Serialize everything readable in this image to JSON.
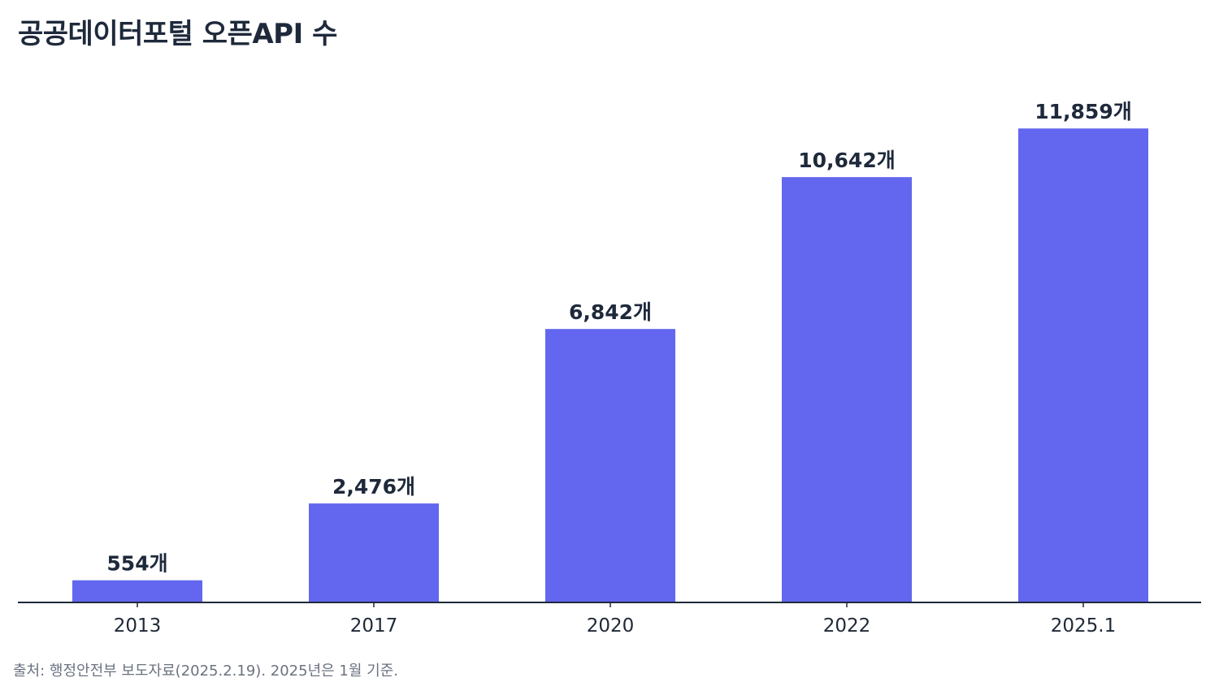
{
  "title": "공공데이터포털 오픈API 수",
  "source": "출처: 행정안전부 보도자료(2025.2.19). 2025년은 1월 기준.",
  "colors": {
    "bar": "#6366ee",
    "axis": "#1e293b",
    "value_label": "#1e293b",
    "tick_label": "#1f2937"
  },
  "chart_data": {
    "type": "bar",
    "title": "공공데이터포털 오픈API 수",
    "xlabel": "",
    "ylabel": "",
    "categories": [
      "2013",
      "2017",
      "2020",
      "2022",
      "2025.1"
    ],
    "values": [
      554,
      2476,
      6842,
      10642,
      11859
    ],
    "value_labels": [
      "554개",
      "2,476개",
      "6,842개",
      "10,642개",
      "11,859개"
    ],
    "ylim": [
      0,
      13225
    ],
    "grid": false,
    "legend": "none",
    "y_axis_visible": false
  }
}
